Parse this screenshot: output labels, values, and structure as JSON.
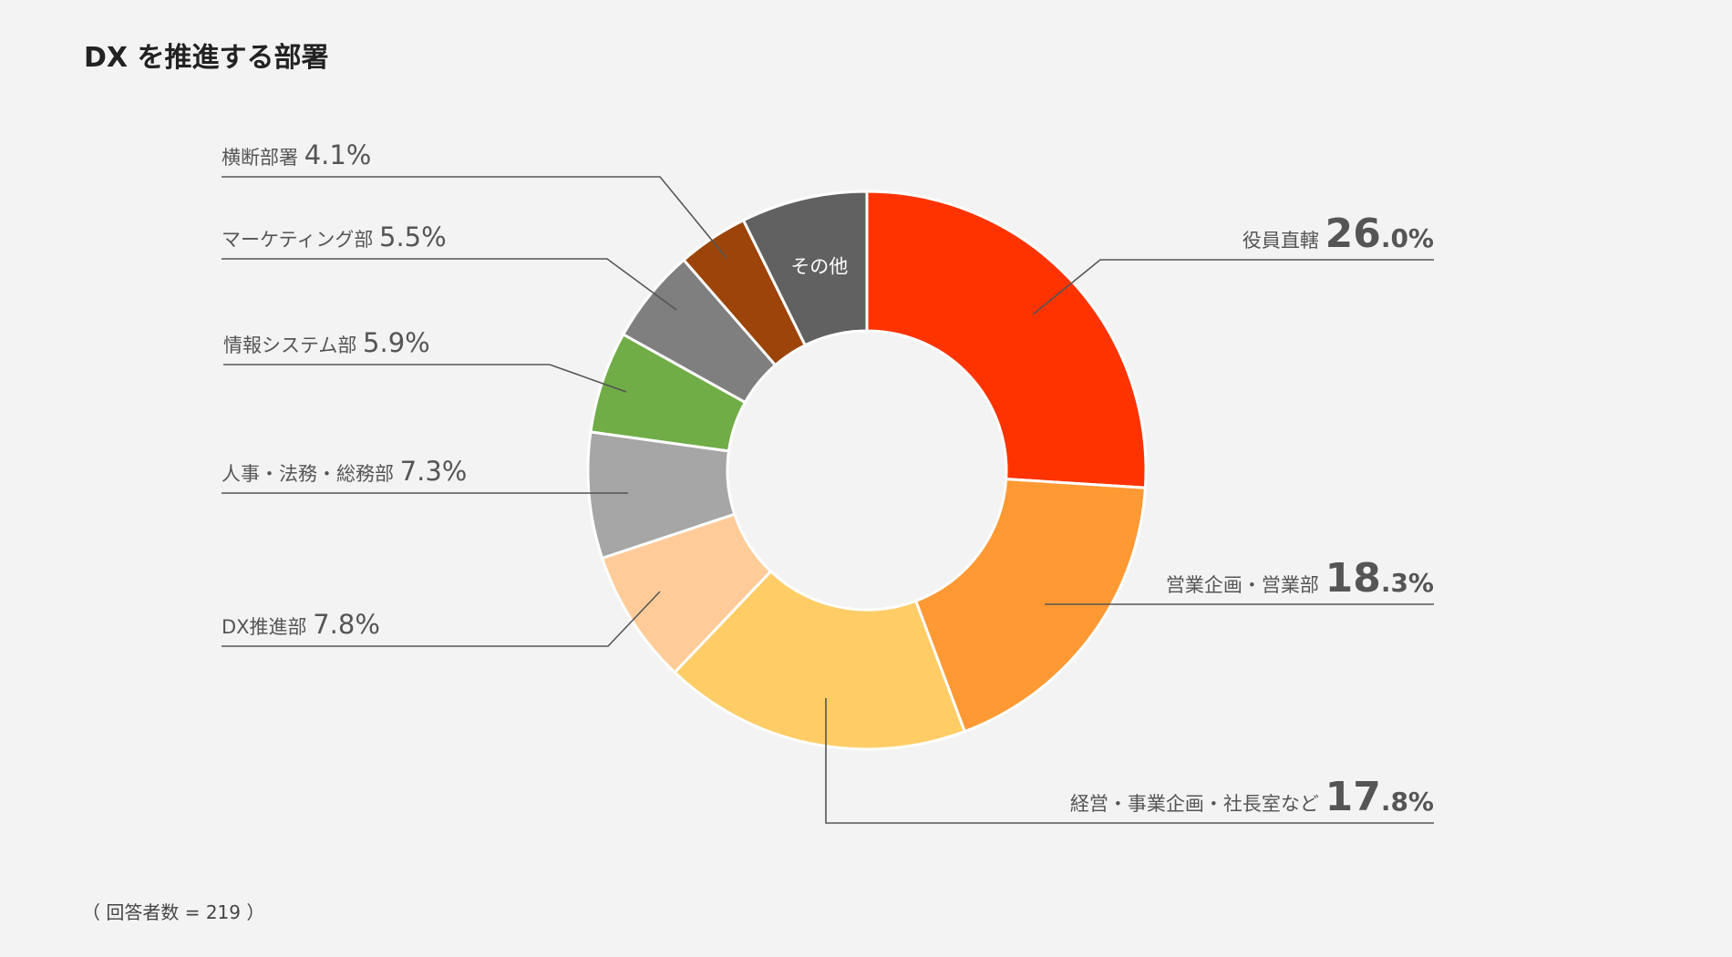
{
  "title": "DX を推進する部署",
  "footnote": "（ 回答者数 = 219 ）",
  "colors": {
    "background": "#f3f3f3",
    "leader": "#555555"
  },
  "chart_data": {
    "type": "pie",
    "donut": true,
    "slices": [
      {
        "label": "役員直轄",
        "value": 26.0,
        "value_text": "26.0%",
        "color": "#ff3300"
      },
      {
        "label": "営業企画・営業部",
        "value": 18.3,
        "value_text": "18.3%",
        "color": "#ff9933"
      },
      {
        "label": "経営・事業企画・社長室など",
        "value": 17.8,
        "value_text": "17.8%",
        "color": "#ffcc66"
      },
      {
        "label": "DX推進部",
        "value": 7.8,
        "value_text": "7.8%",
        "color": "#ffcc99"
      },
      {
        "label": "人事・法務・総務部",
        "value": 7.3,
        "value_text": "7.3%",
        "color": "#a6a6a6"
      },
      {
        "label": "情報システム部",
        "value": 5.9,
        "value_text": "5.9%",
        "color": "#70ad47"
      },
      {
        "label": "マーケティング部",
        "value": 5.5,
        "value_text": "5.5%",
        "color": "#7f7f7f"
      },
      {
        "label": "横断部署",
        "value": 4.1,
        "value_text": "4.1%",
        "color": "#9c4409"
      },
      {
        "label": "その他",
        "value": 7.3,
        "value_text": "",
        "inner_label": "その他",
        "color": "#616161"
      }
    ]
  }
}
